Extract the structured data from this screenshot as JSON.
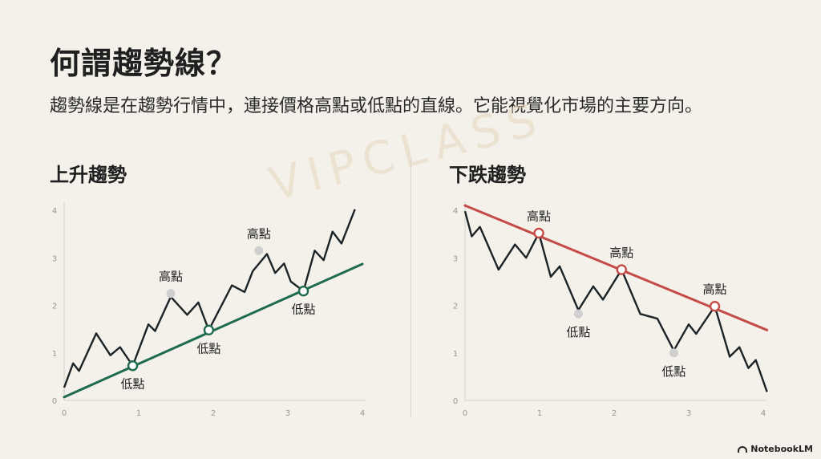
{
  "title": "何謂趨勢線？",
  "subtitle": "趨勢線是在趨勢行情中，連接價格高點或低點的直線。它能視覺化市場的主要方向。",
  "watermark": "VIPCLASS",
  "brand": "NotebookLM",
  "colors": {
    "background": "#f4f1ea",
    "up_trend": "#1f6b4f",
    "down_trend": "#c44b47",
    "price": "#1b2327",
    "marker": "#cfcfcf"
  },
  "chart_data": [
    {
      "type": "line",
      "heading": "上升趨勢",
      "xlim": [
        0,
        4
      ],
      "ylim": [
        0,
        4
      ],
      "xticks": [
        0,
        1,
        2,
        3,
        4
      ],
      "yticks": [
        0,
        1,
        2,
        3,
        4
      ],
      "price": {
        "x": [
          0,
          0.12,
          0.2,
          0.43,
          0.62,
          0.75,
          0.92,
          1.13,
          1.22,
          1.43,
          1.65,
          1.8,
          1.94,
          2.25,
          2.42,
          2.53,
          2.72,
          2.83,
          2.95,
          3.04,
          3.21,
          3.36,
          3.48,
          3.6,
          3.72,
          3.9
        ],
        "y": [
          0.27,
          0.78,
          0.62,
          1.41,
          0.95,
          1.12,
          0.73,
          1.6,
          1.46,
          2.18,
          1.8,
          2.06,
          1.48,
          2.42,
          2.28,
          2.72,
          3.08,
          2.68,
          2.88,
          2.5,
          2.3,
          3.15,
          2.95,
          3.55,
          3.3,
          4.02
        ]
      },
      "trendline": {
        "from": [
          0,
          0.07
        ],
        "to": [
          4,
          2.87
        ]
      },
      "touch_points": [
        {
          "x": 0.92,
          "y": 0.73,
          "label": "低點"
        },
        {
          "x": 1.94,
          "y": 1.48,
          "label": "低點"
        },
        {
          "x": 3.21,
          "y": 2.3,
          "label": "低點"
        }
      ],
      "other_points": [
        {
          "x": 1.43,
          "y": 2.25,
          "label": "高點"
        },
        {
          "x": 2.61,
          "y": 3.15,
          "label": "高點"
        }
      ]
    },
    {
      "type": "line",
      "heading": "下跌趨勢",
      "xlim": [
        0,
        4
      ],
      "ylim": [
        0,
        4
      ],
      "xticks": [
        0,
        1,
        2,
        3,
        4
      ],
      "yticks": [
        0,
        1,
        2,
        3,
        4
      ],
      "price": {
        "x": [
          0,
          0.09,
          0.2,
          0.45,
          0.67,
          0.82,
          0.99,
          1.15,
          1.27,
          1.52,
          1.72,
          1.85,
          2.1,
          2.35,
          2.58,
          2.8,
          3.0,
          3.1,
          3.35,
          3.55,
          3.68,
          3.8,
          3.9,
          4.05
        ],
        "y": [
          3.98,
          3.45,
          3.65,
          2.75,
          3.28,
          3.0,
          3.52,
          2.6,
          2.82,
          1.9,
          2.4,
          2.12,
          2.75,
          1.82,
          1.72,
          1.05,
          1.6,
          1.4,
          1.98,
          0.92,
          1.12,
          0.68,
          0.85,
          0.18
        ]
      },
      "trendline": {
        "from": [
          0,
          4.1
        ],
        "to": [
          4.05,
          1.48
        ]
      },
      "touch_points": [
        {
          "x": 0.99,
          "y": 3.52,
          "label": "高點"
        },
        {
          "x": 2.1,
          "y": 2.75,
          "label": "高點"
        },
        {
          "x": 3.35,
          "y": 1.98,
          "label": "高點"
        }
      ],
      "other_points": [
        {
          "x": 1.52,
          "y": 1.82,
          "label": "低點"
        },
        {
          "x": 2.8,
          "y": 1.0,
          "label": "低點"
        }
      ]
    }
  ]
}
